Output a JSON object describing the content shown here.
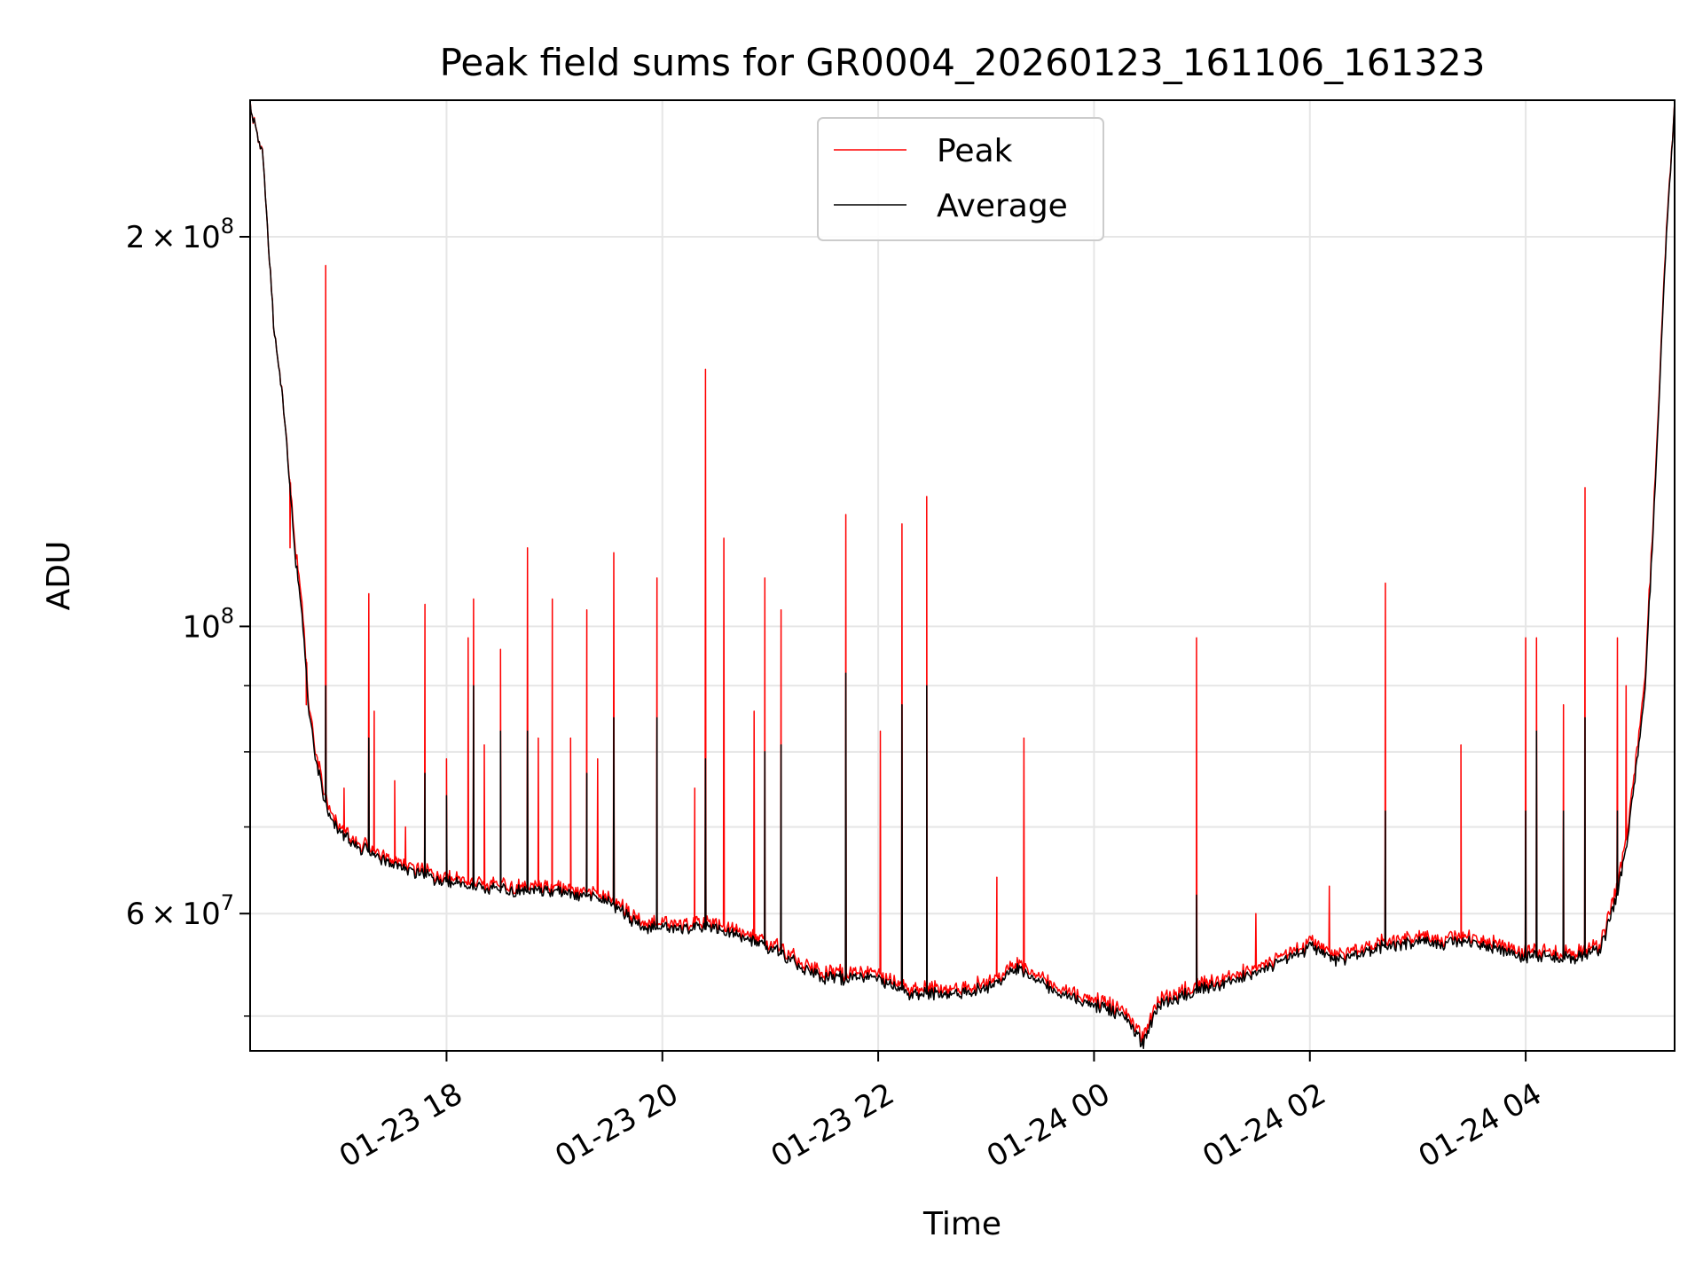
{
  "chart_data": {
    "type": "line",
    "title": "Peak field sums for GR0004_20260123_161106_161323",
    "xlabel": "Time",
    "ylabel": "ADU",
    "y_scale": "log",
    "ylim": [
      47000000,
      255000000
    ],
    "x_range_hours": [
      16.18,
      29.38
    ],
    "x_unit": "hours since 2026-01-23 00:00",
    "grid": true,
    "legend_position": "upper center",
    "x_ticks": [
      {
        "value": 18,
        "label": "01-23 18"
      },
      {
        "value": 20,
        "label": "01-23 20"
      },
      {
        "value": 22,
        "label": "01-23 22"
      },
      {
        "value": 24,
        "label": "01-24 00"
      },
      {
        "value": 26,
        "label": "01-24 02"
      },
      {
        "value": 28,
        "label": "01-24 04"
      }
    ],
    "y_major_ticks": [
      {
        "value": 60000000,
        "mant": "6",
        "exp": "7"
      },
      {
        "value": 100000000,
        "mant": "",
        "exp": "8"
      },
      {
        "value": 200000000,
        "mant": "2",
        "exp": "8"
      }
    ],
    "y_minor_ticks": [
      50000000,
      70000000,
      80000000,
      90000000
    ],
    "series": [
      {
        "name": "Peak",
        "color": "#ff0000",
        "points": [
          [
            16.18,
            252000000
          ],
          [
            16.3,
            230000000
          ],
          [
            16.4,
            170000000
          ],
          [
            16.5,
            145000000
          ],
          [
            16.6,
            115000000
          ],
          [
            16.68,
            100000000
          ],
          [
            16.72,
            88000000
          ],
          [
            16.8,
            79000000
          ],
          [
            16.9,
            73000000
          ],
          [
            17.0,
            70000000
          ],
          [
            17.2,
            68000000
          ],
          [
            17.5,
            66000000
          ],
          [
            18.0,
            64000000
          ],
          [
            18.5,
            63000000
          ],
          [
            19.0,
            63000000
          ],
          [
            19.5,
            62000000
          ],
          [
            19.8,
            59000000
          ],
          [
            20.0,
            59000000
          ],
          [
            20.5,
            59000000
          ],
          [
            21.0,
            57000000
          ],
          [
            21.3,
            55000000
          ],
          [
            21.5,
            54000000
          ],
          [
            22.0,
            54000000
          ],
          [
            22.3,
            52500000
          ],
          [
            22.6,
            52500000
          ],
          [
            23.0,
            53000000
          ],
          [
            23.3,
            55000000
          ],
          [
            23.6,
            53000000
          ],
          [
            24.0,
            51500000
          ],
          [
            24.3,
            50500000
          ],
          [
            24.45,
            48000000
          ],
          [
            24.6,
            51500000
          ],
          [
            25.0,
            53000000
          ],
          [
            25.5,
            54500000
          ],
          [
            26.0,
            57000000
          ],
          [
            26.3,
            55500000
          ],
          [
            26.6,
            57000000
          ],
          [
            27.0,
            57500000
          ],
          [
            27.5,
            57500000
          ],
          [
            28.0,
            56000000
          ],
          [
            28.5,
            56000000
          ],
          [
            28.7,
            57000000
          ],
          [
            28.85,
            63000000
          ],
          [
            28.95,
            70000000
          ],
          [
            29.1,
            90000000
          ],
          [
            29.2,
            130000000
          ],
          [
            29.3,
            200000000
          ],
          [
            29.38,
            252000000
          ]
        ],
        "spikes": [
          [
            16.55,
            115000000
          ],
          [
            16.7,
            87000000
          ],
          [
            16.88,
            190000000
          ],
          [
            17.05,
            75000000
          ],
          [
            17.28,
            106000000
          ],
          [
            17.33,
            86000000
          ],
          [
            17.52,
            76000000
          ],
          [
            17.62,
            70000000
          ],
          [
            17.8,
            104000000
          ],
          [
            18.0,
            79000000
          ],
          [
            18.2,
            98000000
          ],
          [
            18.25,
            105000000
          ],
          [
            18.35,
            81000000
          ],
          [
            18.5,
            96000000
          ],
          [
            18.75,
            115000000
          ],
          [
            18.85,
            82000000
          ],
          [
            18.98,
            105000000
          ],
          [
            19.15,
            82000000
          ],
          [
            19.3,
            103000000
          ],
          [
            19.4,
            79000000
          ],
          [
            19.55,
            114000000
          ],
          [
            19.95,
            109000000
          ],
          [
            20.3,
            75000000
          ],
          [
            20.4,
            158000000
          ],
          [
            20.57,
            117000000
          ],
          [
            20.85,
            86000000
          ],
          [
            20.95,
            109000000
          ],
          [
            21.1,
            103000000
          ],
          [
            21.7,
            122000000
          ],
          [
            22.02,
            83000000
          ],
          [
            22.22,
            120000000
          ],
          [
            22.45,
            126000000
          ],
          [
            23.1,
            64000000
          ],
          [
            23.35,
            82000000
          ],
          [
            24.95,
            98000000
          ],
          [
            25.5,
            60000000
          ],
          [
            26.18,
            63000000
          ],
          [
            26.7,
            108000000
          ],
          [
            27.4,
            81000000
          ],
          [
            28.0,
            98000000
          ],
          [
            28.1,
            98000000
          ],
          [
            28.35,
            87000000
          ],
          [
            28.55,
            128000000
          ],
          [
            28.85,
            98000000
          ],
          [
            28.93,
            90000000
          ]
        ]
      },
      {
        "name": "Average",
        "color": "#000000",
        "points": [
          [
            16.18,
            252000000
          ],
          [
            16.3,
            230000000
          ],
          [
            16.4,
            170000000
          ],
          [
            16.5,
            145000000
          ],
          [
            16.6,
            113000000
          ],
          [
            16.68,
            98000000
          ],
          [
            16.72,
            87000000
          ],
          [
            16.8,
            78000000
          ],
          [
            16.9,
            72000000
          ],
          [
            17.0,
            69500000
          ],
          [
            17.2,
            67500000
          ],
          [
            17.5,
            65500000
          ],
          [
            18.0,
            63500000
          ],
          [
            18.5,
            62500000
          ],
          [
            19.0,
            62500000
          ],
          [
            19.5,
            61500000
          ],
          [
            19.8,
            58500000
          ],
          [
            20.0,
            58500000
          ],
          [
            20.5,
            58500000
          ],
          [
            21.0,
            56500000
          ],
          [
            21.3,
            54500000
          ],
          [
            21.5,
            53500000
          ],
          [
            22.0,
            53500000
          ],
          [
            22.3,
            52000000
          ],
          [
            22.6,
            52000000
          ],
          [
            23.0,
            52500000
          ],
          [
            23.3,
            54500000
          ],
          [
            23.6,
            52500000
          ],
          [
            24.0,
            51000000
          ],
          [
            24.3,
            50000000
          ],
          [
            24.45,
            47500000
          ],
          [
            24.6,
            51000000
          ],
          [
            25.0,
            52500000
          ],
          [
            25.5,
            54000000
          ],
          [
            26.0,
            56500000
          ],
          [
            26.3,
            55000000
          ],
          [
            26.6,
            56500000
          ],
          [
            27.0,
            57000000
          ],
          [
            27.5,
            57000000
          ],
          [
            28.0,
            55500000
          ],
          [
            28.5,
            55500000
          ],
          [
            28.7,
            56500000
          ],
          [
            28.85,
            62000000
          ],
          [
            28.95,
            69000000
          ],
          [
            29.1,
            88000000
          ],
          [
            29.2,
            128000000
          ],
          [
            29.3,
            198000000
          ],
          [
            29.38,
            252000000
          ]
        ],
        "spikes": [
          [
            16.88,
            90000000
          ],
          [
            17.28,
            82000000
          ],
          [
            17.8,
            77000000
          ],
          [
            18.0,
            74000000
          ],
          [
            18.25,
            90000000
          ],
          [
            18.5,
            83000000
          ],
          [
            18.75,
            83000000
          ],
          [
            19.3,
            77000000
          ],
          [
            19.55,
            85000000
          ],
          [
            19.95,
            85000000
          ],
          [
            20.4,
            79000000
          ],
          [
            20.95,
            80000000
          ],
          [
            21.1,
            81000000
          ],
          [
            21.7,
            92000000
          ],
          [
            22.22,
            87000000
          ],
          [
            22.45,
            90000000
          ],
          [
            24.95,
            62000000
          ],
          [
            26.7,
            72000000
          ],
          [
            28.0,
            72000000
          ],
          [
            28.1,
            83000000
          ],
          [
            28.35,
            72000000
          ],
          [
            28.55,
            85000000
          ],
          [
            28.85,
            72000000
          ]
        ]
      }
    ]
  }
}
